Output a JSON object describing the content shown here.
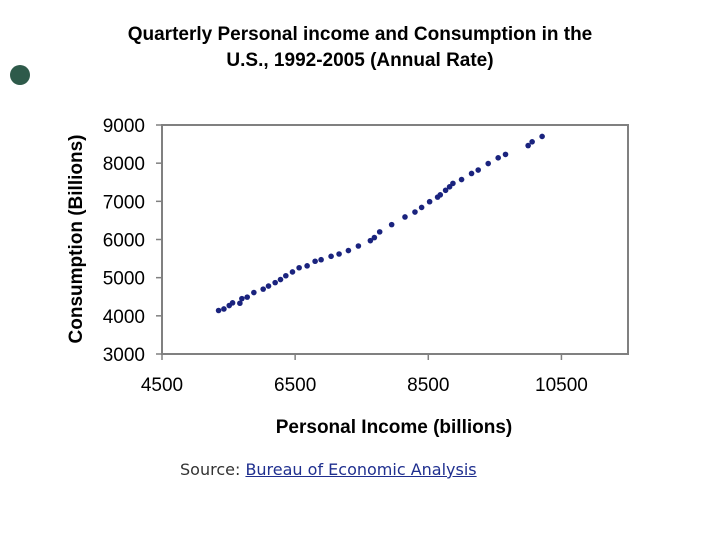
{
  "colors": {
    "marker": "#1a237e",
    "axis": "#808080",
    "bullet": "#2e5a4a",
    "link": "#1f2f8f"
  },
  "chart_data": {
    "type": "scatter",
    "title": [
      "Quarterly Personal income and Consumption in the",
      "U.S., 1992-2005 (Annual Rate)"
    ],
    "xlabel": "Personal Income (billions)",
    "ylabel": "Consumption (Billions)",
    "xlim": [
      4500,
      11500
    ],
    "ylim": [
      3000,
      9000
    ],
    "xticks": [
      "4500",
      "6500",
      "8500",
      "10500"
    ],
    "yticks": [
      "3000",
      "4000",
      "5000",
      "6000",
      "7000",
      "8000",
      "9000"
    ],
    "grid": false,
    "legend": "none",
    "x": [
      5350,
      5430,
      5510,
      5560,
      5670,
      5700,
      5780,
      5880,
      6020,
      6100,
      6200,
      6280,
      6360,
      6460,
      6560,
      6680,
      6800,
      6890,
      7040,
      7160,
      7300,
      7450,
      7630,
      7690,
      7770,
      7950,
      8150,
      8300,
      8400,
      8520,
      8640,
      8680,
      8760,
      8820,
      8870,
      9000,
      9150,
      9250,
      9400,
      9550,
      9660,
      10000,
      10060,
      10210
    ],
    "y": [
      4140,
      4180,
      4270,
      4340,
      4330,
      4450,
      4490,
      4610,
      4700,
      4780,
      4870,
      4950,
      5050,
      5150,
      5260,
      5310,
      5430,
      5470,
      5560,
      5620,
      5710,
      5830,
      5970,
      6050,
      6200,
      6390,
      6590,
      6720,
      6840,
      6990,
      7110,
      7170,
      7290,
      7380,
      7470,
      7570,
      7730,
      7820,
      7990,
      8140,
      8230,
      8460,
      8560,
      8700
    ]
  },
  "source": {
    "prefix": "Source: ",
    "link_text": "Bureau of Economic Analysis"
  }
}
